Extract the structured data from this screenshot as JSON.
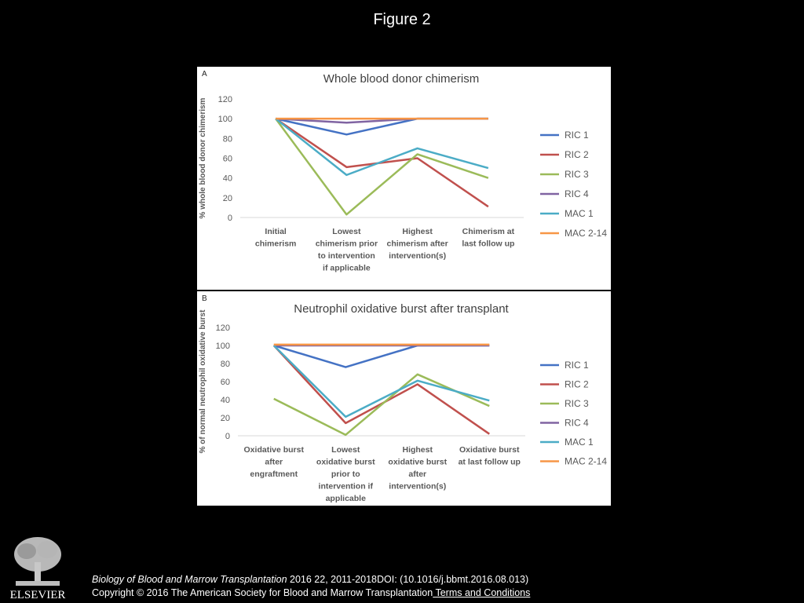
{
  "figure_title": "Figure 2",
  "footer": {
    "journal": "Biology of Blood and Marrow Transplantation",
    "citation": " 2016 22, 2011-2018DOI: (10.1016/j.bbmt.2016.08.013)",
    "copyright": "Copyright © 2016 The American Society for Blood and Marrow Transplantation",
    "terms": " Terms and Conditions"
  },
  "publisher": "ELSEVIER",
  "colors": {
    "RIC 1": "#4472C4",
    "RIC 2": "#C0504D",
    "RIC 3": "#9BBB59",
    "RIC 4": "#8064A2",
    "MAC 1": "#4BACC6",
    "MAC 2-14": "#F79646"
  },
  "chart_data": [
    {
      "type": "line",
      "panel_label": "A",
      "title": "Whole blood donor chimerism",
      "ylabel": "% whole blood donor chimerism",
      "xlabel": "",
      "ylim": [
        0,
        120
      ],
      "yticks": [
        0,
        20,
        40,
        60,
        80,
        100,
        120
      ],
      "grid": false,
      "legend": "right",
      "categories": [
        [
          "Initial",
          "chimerism"
        ],
        [
          "Lowest",
          "chimerism prior",
          "to intervention",
          "if applicable"
        ],
        [
          "Highest",
          "chimerism after",
          "intervention(s)"
        ],
        [
          "Chimerism at",
          "last follow up"
        ]
      ],
      "series": [
        {
          "name": "RIC 1",
          "values": [
            100,
            84,
            100,
            100
          ]
        },
        {
          "name": "RIC 2",
          "values": [
            100,
            51,
            60,
            11
          ]
        },
        {
          "name": "RIC 3",
          "values": [
            100,
            3,
            64,
            40
          ]
        },
        {
          "name": "RIC 4",
          "values": [
            100,
            96,
            100,
            100
          ]
        },
        {
          "name": "MAC 1",
          "values": [
            100,
            43,
            70,
            50
          ]
        },
        {
          "name": "MAC 2-14",
          "values": [
            100,
            100,
            100,
            100
          ]
        }
      ]
    },
    {
      "type": "line",
      "panel_label": "B",
      "title": "Neutrophil oxidative burst after transplant",
      "ylabel": "% of normal neutrophil oxidative burst",
      "xlabel": "",
      "ylim": [
        0,
        120
      ],
      "yticks": [
        0,
        20,
        40,
        60,
        80,
        100,
        120
      ],
      "grid": false,
      "legend": "right",
      "categories": [
        [
          "Oxidative burst",
          "after",
          "engraftment"
        ],
        [
          "Lowest",
          "oxidative burst",
          "prior to",
          "intervention if",
          "applicable"
        ],
        [
          "Highest",
          "oxidative burst",
          "after",
          "intervention(s)"
        ],
        [
          "Oxidative burst",
          "at last follow up"
        ]
      ],
      "series": [
        {
          "name": "RIC 1",
          "values": [
            100,
            76,
            100,
            100
          ]
        },
        {
          "name": "RIC 2",
          "values": [
            100,
            14,
            57,
            2
          ]
        },
        {
          "name": "RIC 3",
          "values": [
            41,
            1,
            68,
            33
          ]
        },
        {
          "name": "RIC 4",
          "values": [
            100,
            100,
            100,
            100
          ]
        },
        {
          "name": "MAC 1",
          "values": [
            100,
            21,
            61,
            39
          ]
        },
        {
          "name": "MAC 2-14",
          "values": [
            101,
            101,
            101,
            101
          ]
        }
      ]
    }
  ]
}
